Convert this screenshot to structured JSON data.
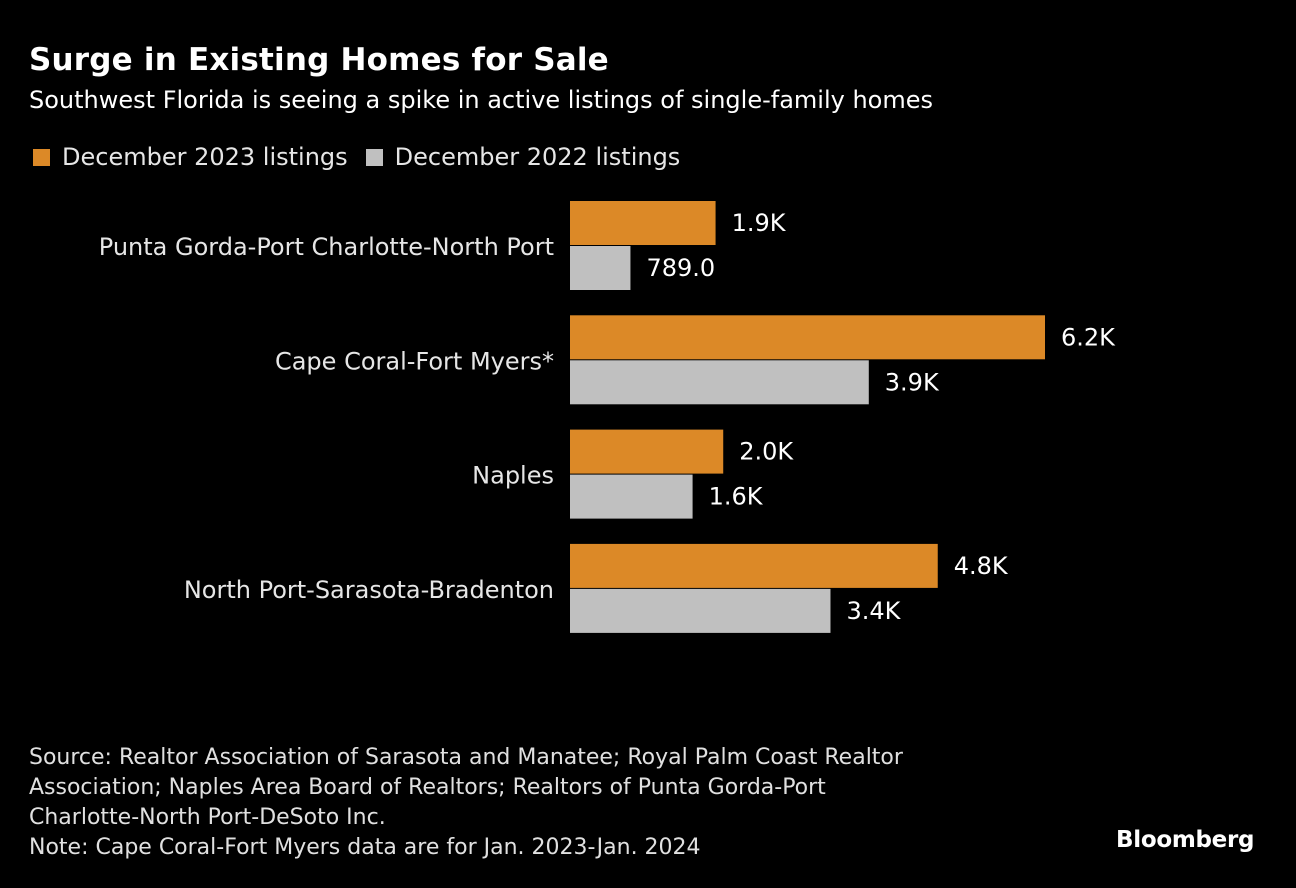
{
  "chart_data": {
    "type": "bar",
    "orientation": "horizontal",
    "title": "Surge in Existing Homes for Sale",
    "subtitle": "Southwest Florida is seeing a spike in active listings of single-family homes",
    "categories": [
      "Punta Gorda-Port Charlotte-North Port",
      "Cape Coral-Fort Myers*",
      "Naples",
      "North Port-Sarasota-Bradenton"
    ],
    "series": [
      {
        "name": "December 2023 listings",
        "color": "#dc8927",
        "values": [
          1900,
          6200,
          2000,
          4800
        ],
        "labels": [
          "1.9K",
          "6.2K",
          "2.0K",
          "4.8K"
        ]
      },
      {
        "name": "December 2022 listings",
        "color": "#c0c0c0",
        "values": [
          789,
          3900,
          1600,
          3400
        ],
        "labels": [
          "789.0",
          "3.9K",
          "1.6K",
          "3.4K"
        ]
      }
    ],
    "xlabel": "",
    "ylabel": "",
    "xlim": [
      0,
      6200
    ],
    "grid": false,
    "legend_position": "top-left"
  },
  "footer": {
    "source_lines": [
      "Source: Realtor Association of Sarasota and Manatee; Royal Palm Coast Realtor",
      "Association; Naples Area Board of Realtors; Realtors of Punta Gorda-Port",
      "Charlotte-North Port-DeSoto Inc."
    ],
    "note": "Note: Cape Coral-Fort Myers data are for Jan. 2023-Jan. 2024",
    "brand": "Bloomberg"
  }
}
